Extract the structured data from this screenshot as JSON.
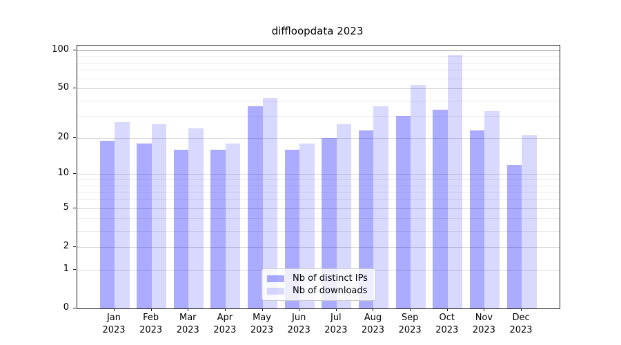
{
  "title": "diffloopdata 2023",
  "chart_data": {
    "type": "bar",
    "title": "diffloopdata 2023",
    "categories": [
      "Jan",
      "Feb",
      "Mar",
      "Apr",
      "May",
      "Jun",
      "Jul",
      "Aug",
      "Sep",
      "Oct",
      "Nov",
      "Dec"
    ],
    "category_year": "2023",
    "series": [
      {
        "name": "Nb of distinct IPs",
        "color": "rgba(0,0,255,0.33)",
        "color_hex": "#ababf3",
        "values": [
          19,
          18,
          16,
          16,
          36,
          16,
          20,
          23,
          30,
          34,
          23,
          12
        ]
      },
      {
        "name": "Nb of downloads",
        "color": "rgba(0,0,255,0.15)",
        "color_hex": "#d7d7fa",
        "values": [
          27,
          26,
          24,
          18,
          42,
          18,
          26,
          36,
          53,
          91,
          33,
          21
        ]
      }
    ],
    "yscale": "log1p",
    "ylim": [
      0,
      109.3
    ],
    "y_major_ticks": [
      100,
      50,
      20,
      10,
      5,
      2,
      1,
      0
    ],
    "y_minor_gridlines": [
      3,
      4,
      6,
      7,
      8,
      9,
      30,
      40,
      60,
      70,
      80,
      90
    ],
    "grid": true,
    "legend_position": "lower center",
    "xlabel": "",
    "ylabel": ""
  }
}
